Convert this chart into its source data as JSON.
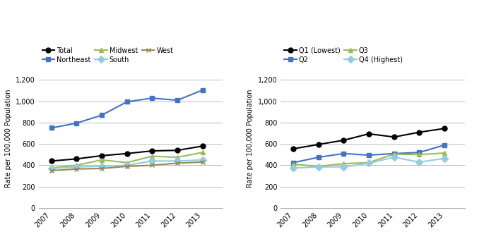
{
  "years": [
    2007,
    2008,
    2009,
    2010,
    2011,
    2012,
    2013
  ],
  "left": {
    "Total": [
      440,
      460,
      490,
      510,
      535,
      540,
      580
    ],
    "Northeast": [
      750,
      795,
      870,
      995,
      1030,
      1010,
      1105
    ],
    "Midwest": [
      375,
      400,
      450,
      425,
      485,
      475,
      520
    ],
    "South": [
      370,
      385,
      390,
      400,
      440,
      440,
      450
    ],
    "West": [
      350,
      365,
      370,
      390,
      400,
      420,
      430
    ]
  },
  "right": {
    "Q1 (Lowest)": [
      555,
      595,
      635,
      695,
      665,
      710,
      745
    ],
    "Q2": [
      425,
      475,
      510,
      495,
      510,
      520,
      590
    ],
    "Q3": [
      410,
      390,
      415,
      425,
      505,
      500,
      515
    ],
    "Q4 (Highest)": [
      375,
      385,
      385,
      420,
      475,
      430,
      465
    ]
  },
  "left_colors": {
    "Total": "#000000",
    "Northeast": "#4472C4",
    "Midwest": "#9BBB59",
    "South": "#92CDDC",
    "West": "#948A54"
  },
  "left_markers": {
    "Total": "o",
    "Northeast": "s",
    "Midwest": "^",
    "South": "D",
    "West": "x"
  },
  "right_colors": {
    "Q1 (Lowest)": "#000000",
    "Q2": "#4472C4",
    "Q3": "#9BBB59",
    "Q4 (Highest)": "#92CDDC"
  },
  "right_markers": {
    "Q1 (Lowest)": "o",
    "Q2": "s",
    "Q3": "^",
    "Q4 (Highest)": "D"
  },
  "ylabel": "Rate per 100,000 Population",
  "ylim": [
    0,
    1300
  ],
  "yticks": [
    0,
    200,
    400,
    600,
    800,
    1000,
    1200
  ],
  "xlim": [
    2006.5,
    2013.8
  ],
  "xticks": [
    2007,
    2008,
    2009,
    2010,
    2011,
    2012,
    2013
  ]
}
